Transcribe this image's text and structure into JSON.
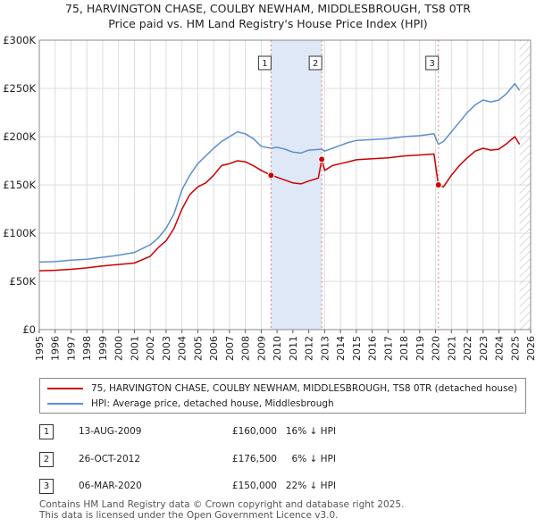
{
  "header": {
    "title_line1": "75, HARVINGTON CHASE, COULBY NEWHAM, MIDDLESBROUGH, TS8 0TR",
    "title_line2": "Price paid vs. HM Land Registry's House Price Index (HPI)"
  },
  "colors": {
    "property_line": "#cc0000",
    "hpi_line": "#5b8fd0",
    "shade": "#dfe8f7",
    "grid": "#dddddd",
    "marker_dash": "#e08080"
  },
  "chart_data": {
    "type": "line",
    "title": "Price paid vs. HM Land Registry's House Price Index (HPI)",
    "xlabel": "",
    "ylabel": "",
    "xlim": [
      1995,
      2026
    ],
    "ylim": [
      0,
      300000
    ],
    "grid": true,
    "y_ticks": [
      {
        "value": 0,
        "label": "£0"
      },
      {
        "value": 50000,
        "label": "£50K"
      },
      {
        "value": 100000,
        "label": "£100K"
      },
      {
        "value": 150000,
        "label": "£150K"
      },
      {
        "value": 200000,
        "label": "£200K"
      },
      {
        "value": 250000,
        "label": "£250K"
      },
      {
        "value": 300000,
        "label": "£300K"
      }
    ],
    "x_ticks": [
      "1995",
      "1996",
      "1997",
      "1998",
      "1999",
      "2000",
      "2001",
      "2002",
      "2003",
      "2004",
      "2005",
      "2006",
      "2007",
      "2008",
      "2009",
      "2010",
      "2011",
      "2012",
      "2013",
      "2014",
      "2015",
      "2016",
      "2017",
      "2018",
      "2019",
      "2020",
      "2021",
      "2022",
      "2023",
      "2024",
      "2025",
      "2026"
    ],
    "shaded_ranges": [
      [
        2009.62,
        2012.82
      ]
    ],
    "future_hatch_from": 2025.3,
    "sale_markers": [
      {
        "label": "1",
        "x": 2009.62,
        "y": 160000
      },
      {
        "label": "2",
        "x": 2012.82,
        "y": 176500
      },
      {
        "label": "3",
        "x": 2020.18,
        "y": 150000
      }
    ],
    "series": [
      {
        "name": "75, HARVINGTON CHASE, COULBY NEWHAM, MIDDLESBROUGH, TS8 0TR (detached house)",
        "points": [
          [
            1995,
            61000
          ],
          [
            1996,
            61500
          ],
          [
            1997,
            62500
          ],
          [
            1998,
            64000
          ],
          [
            1999,
            66000
          ],
          [
            2000,
            67500
          ],
          [
            2001,
            69000
          ],
          [
            2002,
            76000
          ],
          [
            2002.5,
            85000
          ],
          [
            2003,
            92000
          ],
          [
            2003.5,
            105000
          ],
          [
            2004,
            125000
          ],
          [
            2004.5,
            140000
          ],
          [
            2005,
            148000
          ],
          [
            2005.5,
            152000
          ],
          [
            2006,
            160000
          ],
          [
            2006.5,
            170000
          ],
          [
            2007,
            172000
          ],
          [
            2007.5,
            175000
          ],
          [
            2008,
            174000
          ],
          [
            2008.5,
            170000
          ],
          [
            2009,
            165000
          ],
          [
            2009.62,
            160000
          ],
          [
            2010,
            158000
          ],
          [
            2010.5,
            155000
          ],
          [
            2011,
            152000
          ],
          [
            2011.5,
            151000
          ],
          [
            2012,
            154000
          ],
          [
            2012.6,
            157000
          ],
          [
            2012.82,
            176500
          ],
          [
            2013,
            165000
          ],
          [
            2013.5,
            170000
          ],
          [
            2014,
            172000
          ],
          [
            2014.5,
            174000
          ],
          [
            2015,
            176000
          ],
          [
            2016,
            177000
          ],
          [
            2017,
            178000
          ],
          [
            2018,
            180000
          ],
          [
            2019,
            181000
          ],
          [
            2019.9,
            182000
          ],
          [
            2020.18,
            150000
          ],
          [
            2020.5,
            148000
          ],
          [
            2021,
            160000
          ],
          [
            2021.5,
            170000
          ],
          [
            2022,
            178000
          ],
          [
            2022.5,
            185000
          ],
          [
            2023,
            188000
          ],
          [
            2023.5,
            186000
          ],
          [
            2024,
            187000
          ],
          [
            2024.5,
            193000
          ],
          [
            2025,
            200000
          ],
          [
            2025.3,
            192000
          ]
        ]
      },
      {
        "name": "HPI: Average price, detached house, Middlesbrough",
        "points": [
          [
            1995,
            70000
          ],
          [
            1996,
            70500
          ],
          [
            1997,
            72000
          ],
          [
            1998,
            73000
          ],
          [
            1999,
            75000
          ],
          [
            2000,
            77000
          ],
          [
            2001,
            80000
          ],
          [
            2002,
            88000
          ],
          [
            2002.5,
            95000
          ],
          [
            2003,
            105000
          ],
          [
            2003.5,
            120000
          ],
          [
            2004,
            145000
          ],
          [
            2004.5,
            160000
          ],
          [
            2005,
            172000
          ],
          [
            2005.5,
            180000
          ],
          [
            2006,
            188000
          ],
          [
            2006.5,
            195000
          ],
          [
            2007,
            200000
          ],
          [
            2007.5,
            205000
          ],
          [
            2008,
            203000
          ],
          [
            2008.5,
            198000
          ],
          [
            2009,
            190000
          ],
          [
            2009.62,
            188000
          ],
          [
            2010,
            189000
          ],
          [
            2010.5,
            187000
          ],
          [
            2011,
            184000
          ],
          [
            2011.5,
            183000
          ],
          [
            2012,
            186000
          ],
          [
            2012.82,
            187000
          ],
          [
            2013,
            185000
          ],
          [
            2013.5,
            188000
          ],
          [
            2014,
            191000
          ],
          [
            2014.5,
            194000
          ],
          [
            2015,
            196000
          ],
          [
            2016,
            197000
          ],
          [
            2017,
            198000
          ],
          [
            2018,
            200000
          ],
          [
            2019,
            201000
          ],
          [
            2019.9,
            203000
          ],
          [
            2020.18,
            192000
          ],
          [
            2020.5,
            195000
          ],
          [
            2021,
            205000
          ],
          [
            2021.5,
            215000
          ],
          [
            2022,
            225000
          ],
          [
            2022.5,
            233000
          ],
          [
            2023,
            238000
          ],
          [
            2023.5,
            236000
          ],
          [
            2024,
            238000
          ],
          [
            2024.5,
            245000
          ],
          [
            2025,
            255000
          ],
          [
            2025.3,
            248000
          ]
        ]
      }
    ]
  },
  "legend": {
    "property_label": "75, HARVINGTON CHASE, COULBY NEWHAM, MIDDLESBROUGH, TS8 0TR (detached house)",
    "hpi_label": "HPI: Average price, detached house, Middlesbrough"
  },
  "sales": [
    {
      "num": "1",
      "date": "13-AUG-2009",
      "price": "£160,000",
      "hpi": "16% ↓ HPI"
    },
    {
      "num": "2",
      "date": "26-OCT-2012",
      "price": "£176,500",
      "hpi": "6% ↓ HPI"
    },
    {
      "num": "3",
      "date": "06-MAR-2020",
      "price": "£150,000",
      "hpi": "22% ↓ HPI"
    }
  ],
  "footer": {
    "line1": "Contains HM Land Registry data © Crown copyright and database right 2025.",
    "line2": "This data is licensed under the Open Government Licence v3.0."
  }
}
